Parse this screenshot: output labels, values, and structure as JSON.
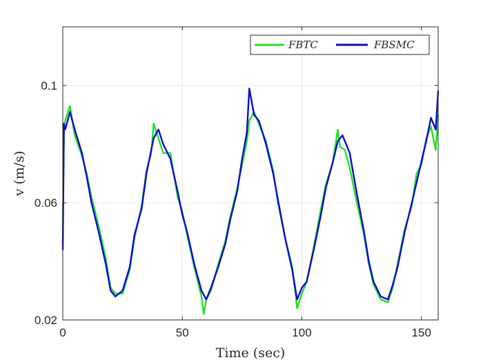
{
  "chart_data": {
    "type": "line",
    "title": "",
    "xlabel": "Time (sec)",
    "ylabel": "v (m/s)",
    "xlim": [
      0,
      157
    ],
    "ylim": [
      0.02,
      0.12
    ],
    "xticks": [
      0,
      50,
      100,
      150
    ],
    "xtick_labels": [
      "0",
      "50",
      "100",
      "150"
    ],
    "yticks": [
      0.02,
      0.06,
      0.1
    ],
    "ytick_labels": [
      "0.02",
      "0.06",
      "0.1"
    ],
    "grid": true,
    "legend_position": "top-right",
    "series": [
      {
        "name": "FBTC",
        "color": "#22e022",
        "x": [
          0,
          0.5,
          1,
          3,
          5,
          8,
          10,
          12,
          15,
          18,
          20,
          22,
          25,
          28,
          30,
          33,
          35,
          37,
          38,
          40,
          42,
          45,
          48,
          50,
          52,
          55,
          58,
          59,
          60,
          62,
          65,
          68,
          70,
          73,
          75,
          77,
          78,
          80,
          82,
          85,
          88,
          90,
          93,
          96,
          98,
          100,
          102,
          105,
          108,
          110,
          113,
          115,
          116,
          118,
          120,
          123,
          126,
          128,
          130,
          133,
          136,
          138,
          140,
          143,
          146,
          148,
          150,
          152,
          154,
          156,
          157
        ],
        "y": [
          0.046,
          0.086,
          0.088,
          0.093,
          0.083,
          0.076,
          0.07,
          0.062,
          0.052,
          0.041,
          0.031,
          0.029,
          0.029,
          0.037,
          0.048,
          0.059,
          0.071,
          0.077,
          0.087,
          0.082,
          0.077,
          0.077,
          0.062,
          0.057,
          0.049,
          0.038,
          0.028,
          0.022,
          0.027,
          0.03,
          0.039,
          0.047,
          0.055,
          0.065,
          0.073,
          0.081,
          0.088,
          0.091,
          0.087,
          0.081,
          0.071,
          0.06,
          0.048,
          0.038,
          0.024,
          0.029,
          0.033,
          0.045,
          0.058,
          0.066,
          0.074,
          0.085,
          0.079,
          0.078,
          0.072,
          0.06,
          0.049,
          0.039,
          0.032,
          0.027,
          0.026,
          0.031,
          0.039,
          0.051,
          0.059,
          0.07,
          0.073,
          0.082,
          0.086,
          0.078,
          0.09
        ]
      },
      {
        "name": "FBSMC",
        "color": "#0a0ad2",
        "x": [
          0,
          0.5,
          1,
          3,
          5,
          8,
          10,
          12,
          15,
          18,
          20,
          22,
          25,
          28,
          30,
          33,
          35,
          37,
          38,
          40,
          42,
          45,
          48,
          50,
          52,
          55,
          58,
          60,
          62,
          65,
          68,
          70,
          73,
          75,
          77,
          78,
          80,
          82,
          85,
          88,
          90,
          93,
          96,
          98,
          100,
          102,
          105,
          108,
          110,
          113,
          115,
          117,
          120,
          123,
          126,
          128,
          130,
          133,
          136,
          138,
          140,
          143,
          146,
          148,
          150,
          152,
          154,
          156,
          157
        ],
        "y": [
          0.044,
          0.087,
          0.085,
          0.091,
          0.085,
          0.077,
          0.069,
          0.06,
          0.05,
          0.039,
          0.03,
          0.028,
          0.03,
          0.038,
          0.049,
          0.058,
          0.07,
          0.078,
          0.082,
          0.085,
          0.08,
          0.075,
          0.064,
          0.056,
          0.05,
          0.039,
          0.03,
          0.027,
          0.031,
          0.038,
          0.046,
          0.054,
          0.064,
          0.075,
          0.084,
          0.099,
          0.09,
          0.088,
          0.08,
          0.07,
          0.061,
          0.048,
          0.037,
          0.027,
          0.031,
          0.033,
          0.044,
          0.056,
          0.065,
          0.074,
          0.081,
          0.083,
          0.077,
          0.063,
          0.05,
          0.04,
          0.033,
          0.028,
          0.027,
          0.032,
          0.038,
          0.05,
          0.06,
          0.067,
          0.074,
          0.081,
          0.089,
          0.085,
          0.098
        ]
      }
    ]
  }
}
